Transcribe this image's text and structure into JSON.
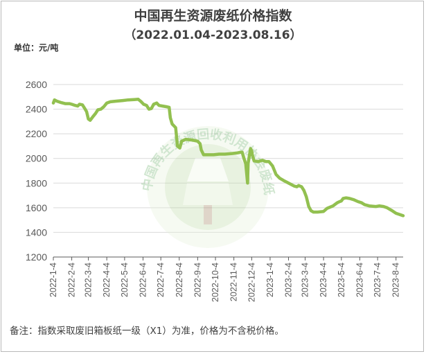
{
  "title": "中国再生资源废纸价格指数",
  "subtitle": "（2022.01.04-2023.08.16）",
  "unit_label": "单位：元/吨",
  "footnote": "备注：指数采取废旧箱板纸一级（X1）为准，价格为不含税价格。",
  "watermark": {
    "text": "中国再生资源回收利用协会废纸分会",
    "color": "#5aab5a"
  },
  "colors": {
    "line": "#92c050",
    "grid": "#d9d9d9",
    "axis": "#595959"
  },
  "chart_data": {
    "type": "line",
    "title": "中国再生资源废纸价格指数",
    "subtitle": "（2022.01.04-2023.08.16）",
    "ylabel": "单位：元/吨",
    "ylim": [
      1200,
      2600
    ],
    "yticks": [
      1200,
      1400,
      1600,
      1800,
      2000,
      2200,
      2400,
      2600
    ],
    "xlim": [
      "2022-01-04",
      "2023-08-16"
    ],
    "x_tick_labels": [
      "2022-1-4",
      "2022-2-4",
      "2022-3-4",
      "2022-4-4",
      "2022-5-4",
      "2022-6-4",
      "2022-7-4",
      "2022-8-4",
      "2022-9-4",
      "2022-10-4",
      "2022-11-4",
      "2022-12-4",
      "2023-1-4",
      "2023-2-4",
      "2023-3-4",
      "2023-4-4",
      "2023-5-4",
      "2023-6-4",
      "2023-7-4",
      "2023-8-4"
    ],
    "x_tick_dates": [
      "2022-01-04",
      "2022-02-04",
      "2022-03-04",
      "2022-04-04",
      "2022-05-04",
      "2022-06-04",
      "2022-07-04",
      "2022-08-04",
      "2022-09-04",
      "2022-10-04",
      "2022-11-04",
      "2022-12-04",
      "2023-01-04",
      "2023-02-04",
      "2023-03-04",
      "2023-04-04",
      "2023-05-04",
      "2023-06-04",
      "2023-07-04",
      "2023-08-04"
    ],
    "grid": true,
    "legend": "none",
    "series": [
      {
        "x": [
          "2022-01-04",
          "2022-01-06",
          "2022-01-10",
          "2022-01-16",
          "2022-01-24",
          "2022-01-31",
          "2022-02-04",
          "2022-02-10",
          "2022-02-14",
          "2022-02-17",
          "2022-02-22",
          "2022-02-26",
          "2022-03-01",
          "2022-03-04",
          "2022-03-07",
          "2022-03-11",
          "2022-03-16",
          "2022-03-20",
          "2022-03-25",
          "2022-03-30",
          "2022-04-04",
          "2022-04-10",
          "2022-04-20",
          "2022-05-01",
          "2022-05-10",
          "2022-05-20",
          "2022-05-27",
          "2022-06-01",
          "2022-06-05",
          "2022-06-10",
          "2022-06-14",
          "2022-06-18",
          "2022-06-22",
          "2022-06-27",
          "2022-07-01",
          "2022-07-07",
          "2022-07-13",
          "2022-07-18",
          "2022-07-20",
          "2022-07-23",
          "2022-07-27",
          "2022-07-29",
          "2022-08-01",
          "2022-08-05",
          "2022-08-08",
          "2022-08-15",
          "2022-08-25",
          "2022-09-04",
          "2022-09-08",
          "2022-09-10",
          "2022-09-14",
          "2022-09-20",
          "2022-10-01",
          "2022-10-10",
          "2022-10-20",
          "2022-11-01",
          "2022-11-10",
          "2022-11-15",
          "2022-11-18",
          "2022-11-21",
          "2022-11-24",
          "2022-11-27",
          "2022-11-28",
          "2022-12-02",
          "2022-12-04",
          "2022-12-05",
          "2022-12-08",
          "2022-12-15",
          "2022-12-22",
          "2022-12-28",
          "2023-01-02",
          "2023-01-08",
          "2023-01-14",
          "2023-01-20",
          "2023-01-27",
          "2023-02-04",
          "2023-02-08",
          "2023-02-14",
          "2023-02-18",
          "2023-02-21",
          "2023-02-26",
          "2023-03-02",
          "2023-03-06",
          "2023-03-10",
          "2023-03-14",
          "2023-03-18",
          "2023-03-25",
          "2023-04-04",
          "2023-04-10",
          "2023-04-15",
          "2023-04-20",
          "2023-04-27",
          "2023-05-01",
          "2023-05-04",
          "2023-05-07",
          "2023-05-12",
          "2023-05-18",
          "2023-05-25",
          "2023-06-01",
          "2023-06-07",
          "2023-06-12",
          "2023-06-20",
          "2023-07-01",
          "2023-07-07",
          "2023-07-14",
          "2023-07-20",
          "2023-07-27",
          "2023-08-04",
          "2023-08-10",
          "2023-08-16"
        ],
        "values": [
          2450,
          2475,
          2465,
          2455,
          2445,
          2445,
          2440,
          2430,
          2425,
          2440,
          2435,
          2405,
          2380,
          2320,
          2310,
          2335,
          2365,
          2395,
          2400,
          2420,
          2450,
          2460,
          2465,
          2470,
          2475,
          2478,
          2480,
          2460,
          2440,
          2430,
          2400,
          2405,
          2440,
          2450,
          2430,
          2425,
          2420,
          2415,
          2330,
          2280,
          2260,
          2250,
          2100,
          2085,
          2140,
          2155,
          2150,
          2140,
          2120,
          2070,
          2030,
          2030,
          2030,
          2035,
          2035,
          2040,
          2045,
          2050,
          2050,
          2000,
          1955,
          1800,
          1960,
          2080,
          2060,
          2030,
          1980,
          1975,
          1985,
          1975,
          1975,
          1940,
          1870,
          1840,
          1820,
          1800,
          1790,
          1775,
          1770,
          1780,
          1770,
          1740,
          1690,
          1610,
          1575,
          1565,
          1565,
          1570,
          1595,
          1605,
          1615,
          1640,
          1650,
          1655,
          1675,
          1680,
          1675,
          1665,
          1650,
          1640,
          1625,
          1615,
          1610,
          1615,
          1610,
          1600,
          1580,
          1555,
          1545,
          1535
        ]
      }
    ]
  }
}
